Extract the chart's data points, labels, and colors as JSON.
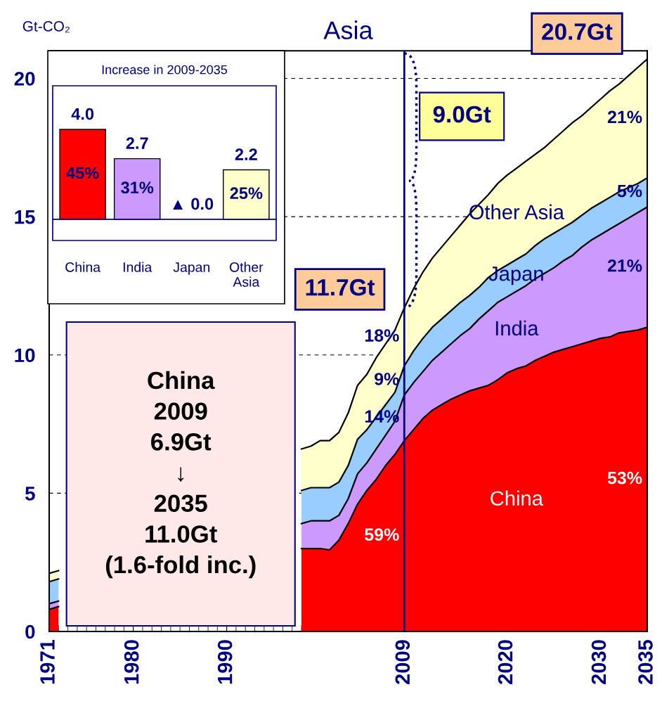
{
  "chart_data": [
    {
      "type": "area",
      "stacked": true,
      "title": "Asia",
      "ylabel": "Gt-CO₂",
      "x": [
        1971,
        1972,
        1973,
        1974,
        1975,
        1976,
        1977,
        1978,
        1979,
        1980,
        1981,
        1982,
        1983,
        1984,
        1985,
        1986,
        1987,
        1988,
        1989,
        1990,
        1991,
        1992,
        1993,
        1994,
        1995,
        1996,
        1997,
        1998,
        1999,
        2000,
        2001,
        2002,
        2003,
        2004,
        2005,
        2006,
        2007,
        2008,
        2009,
        2010,
        2011,
        2012,
        2013,
        2014,
        2015,
        2016,
        2017,
        2018,
        2019,
        2020,
        2021,
        2022,
        2023,
        2024,
        2025,
        2026,
        2027,
        2028,
        2029,
        2030,
        2031,
        2032,
        2033,
        2034,
        2035
      ],
      "series": [
        {
          "name": "China",
          "color": "#ff0000",
          "values": [
            0.8,
            0.9,
            null,
            null,
            null,
            null,
            null,
            null,
            null,
            null,
            null,
            null,
            null,
            null,
            null,
            null,
            null,
            null,
            null,
            null,
            null,
            null,
            null,
            null,
            null,
            null,
            null,
            3.0,
            3.0,
            3.0,
            2.95,
            3.3,
            3.9,
            4.6,
            5.1,
            5.5,
            6.0,
            6.4,
            6.9,
            7.3,
            7.7,
            8.0,
            8.2,
            8.4,
            8.55,
            8.7,
            8.8,
            8.9,
            9.1,
            9.35,
            9.5,
            9.6,
            9.8,
            9.95,
            10.1,
            10.2,
            10.3,
            10.4,
            10.5,
            10.6,
            10.65,
            10.8,
            10.85,
            10.9,
            11.0
          ]
        },
        {
          "name": "India",
          "color": "#cc99ff",
          "values": [
            0.2,
            0.2,
            null,
            null,
            null,
            null,
            null,
            null,
            null,
            null,
            null,
            null,
            null,
            null,
            null,
            null,
            null,
            null,
            null,
            null,
            null,
            null,
            null,
            null,
            null,
            null,
            null,
            0.9,
            1.0,
            1.0,
            1.05,
            0.9,
            0.9,
            1.1,
            1.0,
            1.1,
            1.1,
            1.2,
            1.65,
            1.7,
            1.7,
            1.8,
            1.9,
            2.0,
            2.15,
            2.25,
            2.5,
            2.7,
            2.8,
            2.75,
            2.8,
            2.9,
            2.95,
            3.0,
            3.05,
            3.2,
            3.3,
            3.5,
            3.65,
            3.75,
            3.9,
            3.95,
            4.1,
            4.25,
            4.35
          ]
        },
        {
          "name": "Japan",
          "color": "#99ccff",
          "values": [
            0.8,
            0.8,
            null,
            null,
            null,
            null,
            null,
            null,
            null,
            null,
            null,
            null,
            null,
            null,
            null,
            null,
            null,
            null,
            null,
            null,
            null,
            null,
            null,
            null,
            null,
            null,
            null,
            1.2,
            1.2,
            1.2,
            1.2,
            1.2,
            1.2,
            1.25,
            1.2,
            1.15,
            1.1,
            1.05,
            1.05,
            1.15,
            1.2,
            1.2,
            1.2,
            1.2,
            1.2,
            1.2,
            1.15,
            1.2,
            1.15,
            1.15,
            1.15,
            1.15,
            1.2,
            1.25,
            1.25,
            1.2,
            1.2,
            1.15,
            1.15,
            1.15,
            1.15,
            1.15,
            1.1,
            1.05,
            1.05
          ]
        },
        {
          "name": "Other Asia",
          "color": "#ffffcc",
          "values": [
            0.3,
            0.3,
            null,
            null,
            null,
            null,
            null,
            null,
            null,
            null,
            null,
            null,
            null,
            null,
            null,
            null,
            null,
            null,
            null,
            null,
            null,
            null,
            null,
            null,
            null,
            null,
            null,
            1.5,
            1.5,
            1.7,
            1.7,
            1.8,
            1.9,
            1.95,
            2.0,
            2.15,
            2.2,
            2.25,
            2.1,
            2.25,
            2.4,
            2.5,
            2.6,
            2.7,
            2.8,
            2.95,
            3.0,
            3.0,
            3.15,
            3.25,
            3.3,
            3.35,
            3.3,
            3.3,
            3.4,
            3.5,
            3.6,
            3.6,
            3.65,
            3.75,
            3.85,
            3.9,
            4.05,
            4.2,
            4.3
          ]
        }
      ],
      "xlim": [
        1971,
        2035
      ],
      "ylim": [
        0,
        21
      ],
      "xticks": [
        1971,
        1980,
        1990,
        2009,
        2020,
        2030,
        2035
      ],
      "yticks": [
        0,
        5,
        10,
        15,
        20
      ],
      "grid": "y",
      "ref_lines": [
        {
          "axis": "x",
          "value": 2009,
          "color": "#000080"
        }
      ],
      "annotations": [
        "China\n2009\n6.9Gt\n↓\n2035\n11.0Gt\n(1.6-fold inc.)",
        "9.0Gt",
        "11.7Gt",
        "20.7Gt",
        "18%",
        "9%",
        "14%",
        "59%",
        "21%",
        "5%",
        "21%",
        "53%"
      ]
    },
    {
      "type": "bar",
      "title": "Increase in 2009-2035",
      "categories": [
        "China",
        "India",
        "Japan",
        "Other Asia"
      ],
      "values": [
        4.0,
        2.7,
        0.0,
        2.2
      ],
      "colors": [
        "#ff0000",
        "#cc99ff",
        "#ffffff",
        "#ffffcc"
      ],
      "value_labels": [
        "4.0",
        "2.7",
        "▲ 0.0",
        "2.2"
      ],
      "tick_labels": "x",
      "annotations": [
        "45%",
        "31%",
        "25%"
      ]
    }
  ]
}
